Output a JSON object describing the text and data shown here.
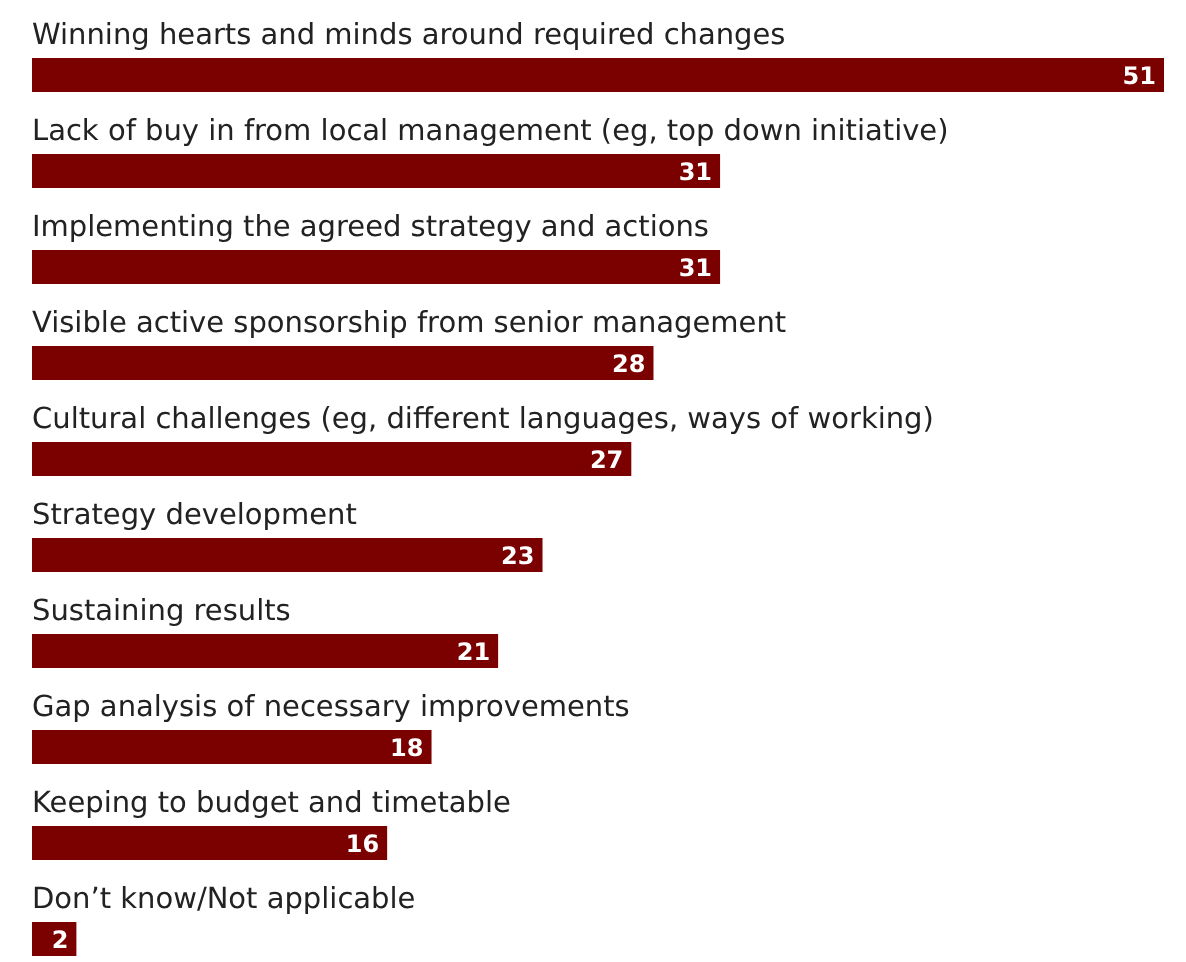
{
  "chart_data": {
    "type": "bar",
    "orientation": "horizontal",
    "data_labels": true,
    "categories": [
      "Winning hearts and minds around required changes",
      "Lack of buy in from local management (eg, top down initiative)",
      "Implementing the agreed strategy and actions",
      "Visible active sponsorship from senior management",
      "Cultural challenges (eg, different languages, ways of working)",
      "Strategy development",
      "Sustaining results",
      "Gap analysis of necessary improvements",
      "Keeping to budget and timetable",
      "Don’t know/Not applicable"
    ],
    "values": [
      51,
      31,
      31,
      28,
      27,
      23,
      21,
      18,
      16,
      2
    ],
    "color": "#7b0000"
  }
}
